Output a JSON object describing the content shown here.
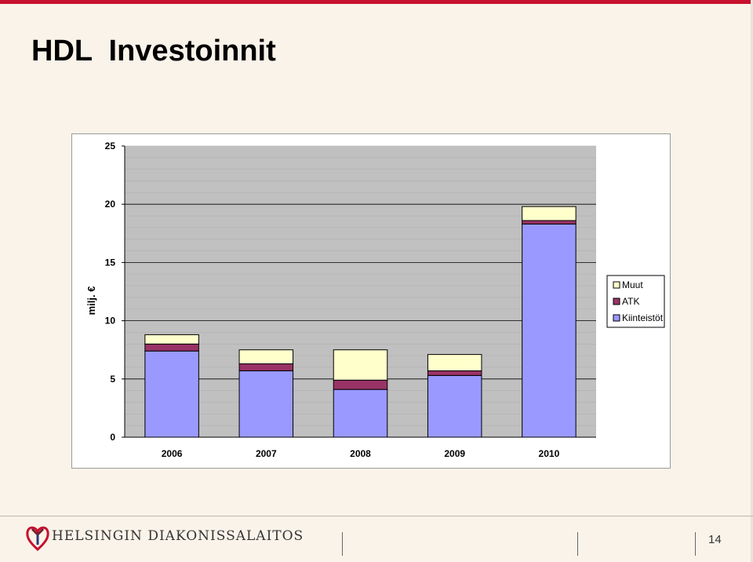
{
  "slide": {
    "title": "HDL  Investoinnit",
    "page_number": "14",
    "organization": "HELSINGIN DIAKONISSALAITOS",
    "accent_color": "#c8102e",
    "logo_icon": "heart-cross-logo-icon"
  },
  "chart_data": {
    "type": "bar",
    "stacked": true,
    "categories": [
      "2006",
      "2007",
      "2008",
      "2009",
      "2010"
    ],
    "series": [
      {
        "name": "Kiinteistöt",
        "color": "#9999ff",
        "values": [
          7.4,
          5.7,
          4.1,
          5.3,
          18.3
        ]
      },
      {
        "name": "ATK",
        "color": "#993366",
        "values": [
          0.6,
          0.6,
          0.8,
          0.4,
          0.3
        ]
      },
      {
        "name": "Muut",
        "color": "#ffffcc",
        "values": [
          0.8,
          1.2,
          2.6,
          1.4,
          1.2
        ]
      }
    ],
    "ylabel": "milj. €",
    "xlabel": "",
    "ylim": [
      0,
      25
    ],
    "yticks": [
      0,
      5,
      10,
      15,
      20,
      25
    ],
    "plot_background": "#c0c0c0",
    "grid": true,
    "legend_position": "right",
    "legend_order": [
      "Muut",
      "ATK",
      "Kiinteistöt"
    ]
  }
}
